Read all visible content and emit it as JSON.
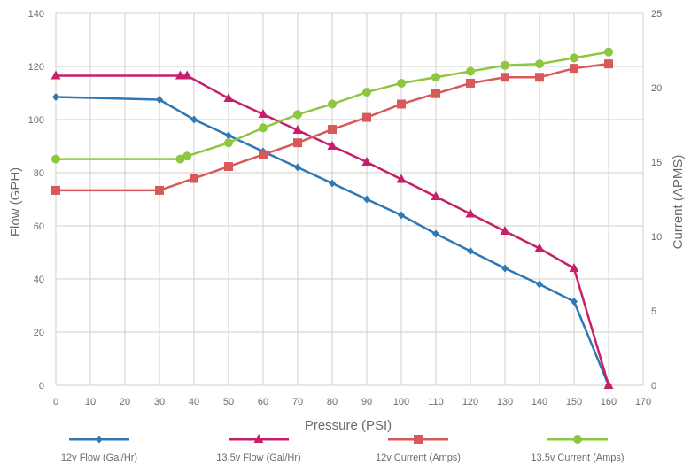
{
  "chart_data": {
    "type": "line",
    "xlabel": "Pressure (PSI)",
    "ylabel": "Flow (GPH)",
    "y2label": "Current (APMS)",
    "xlim": [
      0,
      170
    ],
    "ylim": [
      0,
      140
    ],
    "y2lim": [
      0,
      25
    ],
    "x_ticks": [
      0,
      10,
      20,
      30,
      40,
      50,
      60,
      70,
      80,
      90,
      100,
      110,
      120,
      130,
      140,
      150,
      160,
      170
    ],
    "y_ticks": [
      0,
      20,
      40,
      60,
      80,
      100,
      120,
      140
    ],
    "y2_ticks": [
      0,
      5,
      10,
      15,
      20,
      25
    ],
    "grid": true,
    "legend_position": "bottom",
    "series": [
      {
        "name": "12v Flow (Gal/Hr)",
        "axis": "left",
        "color": "#2f78b4",
        "marker": "diamond",
        "x": [
          0,
          30,
          40,
          50,
          60,
          70,
          80,
          90,
          100,
          110,
          120,
          130,
          140,
          150,
          160
        ],
        "values": [
          108.5,
          107.5,
          100,
          94,
          88,
          82,
          76,
          70,
          64,
          57,
          50.5,
          44,
          38,
          31.5,
          0
        ]
      },
      {
        "name": "13.5v Flow (Gal/Hr)",
        "axis": "left",
        "color": "#c81f6b",
        "marker": "triangle",
        "x": [
          0,
          36,
          38,
          50,
          60,
          70,
          80,
          90,
          100,
          110,
          120,
          130,
          140,
          150,
          160
        ],
        "values": [
          116.5,
          116.5,
          116.5,
          108,
          102,
          96,
          90,
          84,
          77.5,
          71,
          64.5,
          58,
          51.5,
          44,
          0
        ]
      },
      {
        "name": "12v Current (Amps)",
        "axis": "right",
        "color": "#d9595a",
        "marker": "square",
        "x": [
          0,
          30,
          40,
          50,
          60,
          70,
          80,
          90,
          100,
          110,
          120,
          130,
          140,
          150,
          160
        ],
        "values": [
          13.1,
          13.1,
          13.9,
          14.7,
          15.5,
          16.3,
          17.2,
          18.0,
          18.9,
          19.6,
          20.3,
          20.7,
          20.7,
          21.3,
          21.6
        ]
      },
      {
        "name": "13.5v Current (Amps)",
        "axis": "right",
        "color": "#8dc63f",
        "marker": "circle",
        "x": [
          0,
          36,
          38,
          50,
          60,
          70,
          80,
          90,
          100,
          110,
          120,
          130,
          140,
          150,
          160
        ],
        "values": [
          15.2,
          15.2,
          15.4,
          16.3,
          17.3,
          18.2,
          18.9,
          19.7,
          20.3,
          20.7,
          21.1,
          21.5,
          21.6,
          22.0,
          22.4
        ]
      }
    ]
  }
}
